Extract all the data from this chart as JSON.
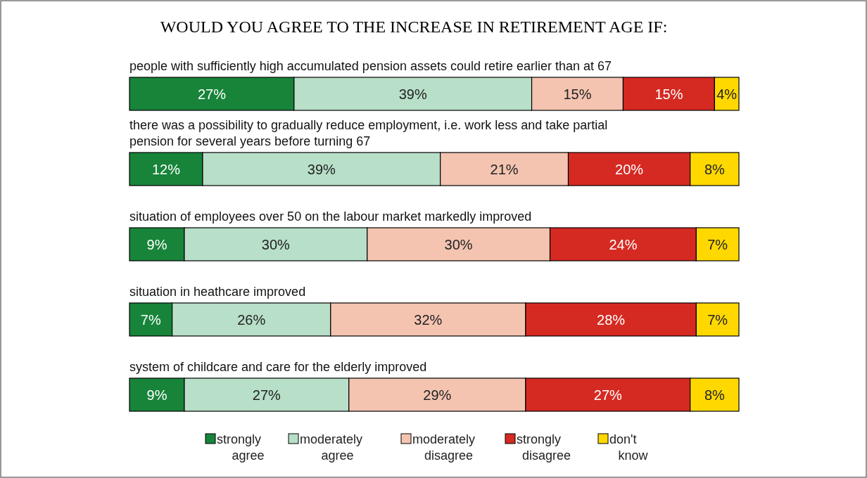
{
  "chart_data": {
    "type": "bar",
    "orientation": "horizontal",
    "stacked": true,
    "title": "WOULD YOU AGREE TO THE INCREASE IN RETIREMENT AGE IF:",
    "categories": [
      "people with sufficiently high accumulated pension assets could retire earlier than at 67",
      "there was a possibility to gradually reduce employment, i.e. work less and take partial pension for several years before turning 67",
      "situation of employees over 50 on the labour market markedly improved",
      "situation in heathcare improved",
      "system of childcare and care for the elderly improved"
    ],
    "series": [
      {
        "name": "strongly agree",
        "color": "#17843a",
        "values": [
          27,
          12,
          9,
          7,
          9
        ],
        "value_labels": [
          "27%",
          "12%",
          "9%",
          "7%",
          "9%"
        ]
      },
      {
        "name": "moderately agree",
        "color": "#b8dfc8",
        "values": [
          39,
          39,
          30,
          26,
          27
        ],
        "value_labels": [
          "39%",
          "39%",
          "30%",
          "26%",
          "27%"
        ]
      },
      {
        "name": "moderately disagree",
        "color": "#f4c4b1",
        "values": [
          15,
          21,
          30,
          32,
          29
        ],
        "value_labels": [
          "15%",
          "21%",
          "30%",
          "32%",
          "29%"
        ]
      },
      {
        "name": "strongly disagree",
        "color": "#d52a22",
        "values": [
          15,
          20,
          24,
          28,
          27
        ],
        "value_labels": [
          "15%",
          "20%",
          "24%",
          "28%",
          "27%"
        ]
      },
      {
        "name": "don't know",
        "color": "#ffd800",
        "values": [
          4,
          8,
          7,
          7,
          8
        ],
        "value_labels": [
          "4%",
          "8%",
          "7%",
          "7%",
          "8%"
        ]
      }
    ],
    "legend": "bottom"
  }
}
